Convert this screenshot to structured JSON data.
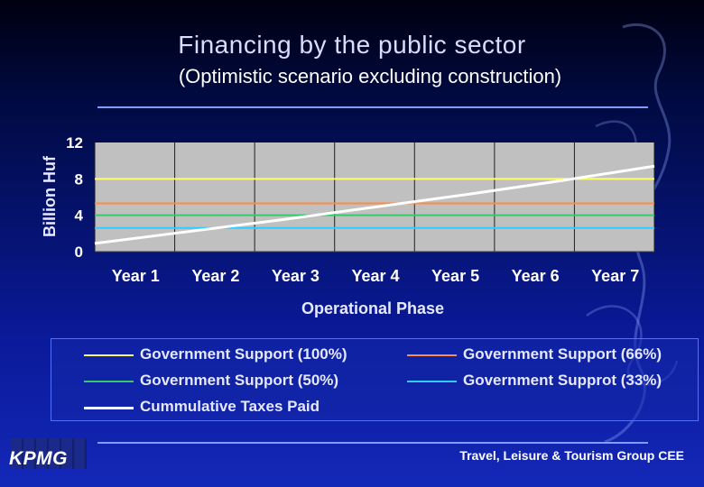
{
  "slide": {
    "title": "Financing by the public sector",
    "subtitle": "(Optimistic scenario excluding construction)",
    "logo": "KPMG",
    "footer": "Travel, Leisure & Tourism Group CEE"
  },
  "colors": {
    "plot_background": "#c0c0c0",
    "gov_100": "#ffff66",
    "gov_66": "#ff8c42",
    "gov_50": "#33cc66",
    "gov_33": "#33ccff",
    "taxes": "#ffffff"
  },
  "chart_data": {
    "type": "line",
    "title": "",
    "xlabel": "Operational Phase",
    "ylabel": "Billion Huf",
    "categories": [
      "Year 1",
      "Year 2",
      "Year 3",
      "Year 4",
      "Year 5",
      "Year 6",
      "Year 7"
    ],
    "ylim": [
      0,
      12
    ],
    "yticks": [
      "0",
      "4",
      "8",
      "12"
    ],
    "grid": "vertical",
    "legend_position": "bottom",
    "series": [
      {
        "name": "Government Support (100%)",
        "color": "#ffff66",
        "values": [
          8,
          8,
          8,
          8,
          8,
          8,
          8
        ]
      },
      {
        "name": "Government Support (66%)",
        "color": "#ff8c42",
        "values": [
          5.3,
          5.3,
          5.3,
          5.3,
          5.3,
          5.3,
          5.3
        ]
      },
      {
        "name": "Government Support (50%)",
        "color": "#33cc66",
        "values": [
          4,
          4,
          4,
          4,
          4,
          4,
          4
        ]
      },
      {
        "name": "Government Supprot (33%)",
        "color": "#33ccff",
        "values": [
          2.6,
          2.6,
          2.6,
          2.6,
          2.6,
          2.6,
          2.6
        ]
      },
      {
        "name": "Cummulative Taxes Paid",
        "color": "#ffffff",
        "values": [
          0.9,
          2.2,
          3.5,
          4.9,
          6.3,
          7.8,
          9.4
        ]
      }
    ]
  }
}
